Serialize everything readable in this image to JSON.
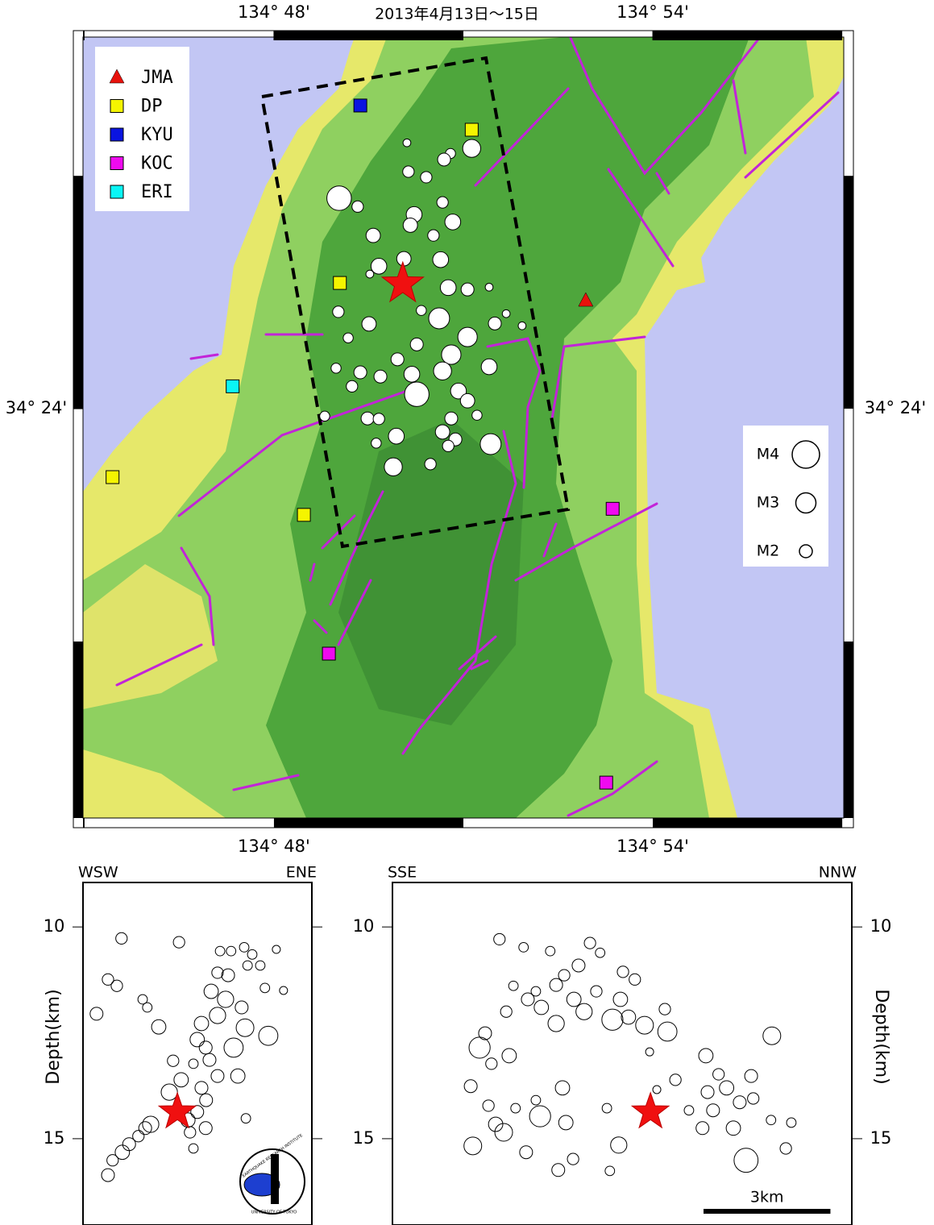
{
  "title": "2013年4月13日～15日",
  "map": {
    "xlim": [
      134.7496,
      134.9504
    ],
    "ylim": [
      34.3121,
      34.4798
    ],
    "xticks": [
      {
        "value": 134.8,
        "label": "134° 48'"
      },
      {
        "value": 134.9,
        "label": "134° 54'"
      }
    ],
    "yticks": [
      {
        "value": 34.4,
        "label": "34° 24'"
      }
    ],
    "networks": [
      {
        "name": "JMA",
        "color": "#e8120c",
        "shape": "triangle"
      },
      {
        "name": "DP",
        "color": "#f5f500",
        "shape": "square"
      },
      {
        "name": "KYU",
        "color": "#0a14e0",
        "shape": "square"
      },
      {
        "name": "KOC",
        "color": "#ef0aef",
        "shape": "square"
      },
      {
        "name": "ERI",
        "color": "#0af5f5",
        "shape": "square"
      }
    ],
    "stations": [
      {
        "network": "JMA",
        "lon": 134.8823,
        "lat": 34.4232
      },
      {
        "network": "DP",
        "lon": 134.8522,
        "lat": 34.4599
      },
      {
        "network": "DP",
        "lon": 134.8174,
        "lat": 34.427
      },
      {
        "network": "DP",
        "lon": 134.7574,
        "lat": 34.3853
      },
      {
        "network": "DP",
        "lon": 134.8079,
        "lat": 34.3772
      },
      {
        "network": "KYU",
        "lon": 134.8228,
        "lat": 34.4651
      },
      {
        "network": "KOC",
        "lon": 134.8894,
        "lat": 34.3785
      },
      {
        "network": "KOC",
        "lon": 134.8145,
        "lat": 34.3474
      },
      {
        "network": "KOC",
        "lon": 134.8877,
        "lat": 34.3197
      },
      {
        "network": "ERI",
        "lon": 134.7891,
        "lat": 34.4048
      }
    ],
    "mainshock": {
      "lon": 134.834,
      "lat": 34.4268
    },
    "epicenters": [
      [
        134.8522,
        34.4559,
        2.7
      ],
      [
        134.8466,
        34.4548,
        1.6
      ],
      [
        134.8351,
        34.4571,
        1.3
      ],
      [
        134.8449,
        34.4535,
        2.0
      ],
      [
        134.8355,
        34.4509,
        1.8
      ],
      [
        134.8402,
        34.4497,
        1.8
      ],
      [
        134.8172,
        34.4452,
        3.6
      ],
      [
        134.8221,
        34.4434,
        1.8
      ],
      [
        134.837,
        34.4417,
        2.4
      ],
      [
        134.8445,
        34.4443,
        1.8
      ],
      [
        134.8472,
        34.4401,
        2.4
      ],
      [
        134.836,
        34.4394,
        2.2
      ],
      [
        134.8421,
        34.4372,
        1.8
      ],
      [
        134.8262,
        34.4372,
        2.2
      ],
      [
        134.8343,
        34.4322,
        2.2
      ],
      [
        134.844,
        34.432,
        2.4
      ],
      [
        134.8277,
        34.4306,
        2.4
      ],
      [
        134.846,
        34.426,
        2.4
      ],
      [
        134.8511,
        34.4256,
        2.0
      ],
      [
        134.8436,
        34.4194,
        3.1
      ],
      [
        134.8568,
        34.4261,
        1.3
      ],
      [
        134.8253,
        34.4289,
        1.3
      ],
      [
        134.817,
        34.4208,
        1.8
      ],
      [
        134.8251,
        34.4182,
        2.2
      ],
      [
        134.8389,
        34.4211,
        1.6
      ],
      [
        134.8583,
        34.4183,
        2.0
      ],
      [
        134.8613,
        34.4204,
        1.3
      ],
      [
        134.8655,
        34.4178,
        1.3
      ],
      [
        134.8196,
        34.4152,
        1.6
      ],
      [
        134.8377,
        34.4138,
        2.0
      ],
      [
        134.8511,
        34.4154,
        2.9
      ],
      [
        134.8468,
        34.4116,
        2.9
      ],
      [
        134.8568,
        34.409,
        2.4
      ],
      [
        134.8445,
        34.4081,
        2.7
      ],
      [
        134.8326,
        34.4106,
        2.0
      ],
      [
        134.8164,
        34.4087,
        1.6
      ],
      [
        134.8228,
        34.4078,
        2.0
      ],
      [
        134.8281,
        34.4069,
        2.0
      ],
      [
        134.8364,
        34.4074,
        2.4
      ],
      [
        134.8206,
        34.4048,
        1.8
      ],
      [
        134.8377,
        34.4031,
        3.6
      ],
      [
        134.8487,
        34.4038,
        2.4
      ],
      [
        134.8511,
        34.4017,
        2.2
      ],
      [
        134.8134,
        34.3984,
        1.6
      ],
      [
        134.8247,
        34.3979,
        2.0
      ],
      [
        134.8277,
        34.3978,
        1.8
      ],
      [
        134.8468,
        34.3979,
        2.0
      ],
      [
        134.8536,
        34.3986,
        1.6
      ],
      [
        134.8323,
        34.3941,
        2.4
      ],
      [
        134.827,
        34.3926,
        1.6
      ],
      [
        134.8445,
        34.395,
        2.2
      ],
      [
        134.8479,
        34.3934,
        2.0
      ],
      [
        134.8572,
        34.3924,
        3.1
      ],
      [
        134.8413,
        34.3881,
        1.8
      ],
      [
        134.8315,
        34.3875,
        2.7
      ],
      [
        134.846,
        34.392,
        1.8
      ]
    ],
    "magnitude_scale": [
      {
        "label": "M4",
        "value": 4
      },
      {
        "label": "M3",
        "value": 3
      },
      {
        "label": "M2",
        "value": 2
      }
    ]
  },
  "sections": [
    {
      "left_label": "WSW",
      "right_label": "ENE",
      "axis_label": "Depth(km)",
      "xlim": [
        0,
        5.41
      ],
      "ylim": [
        8.95,
        17.0
      ],
      "yticks": [
        10,
        15
      ],
      "mainshock": [
        2.23,
        14.37
      ],
      "events": [
        [
          0.91,
          10.27,
          2.0
        ],
        [
          0.32,
          12.05,
          2.3
        ],
        [
          0.59,
          11.24,
          2.0
        ],
        [
          0.8,
          11.39,
          2.0
        ],
        [
          1.41,
          11.71,
          1.6
        ],
        [
          1.52,
          11.9,
          1.6
        ],
        [
          1.79,
          12.36,
          2.6
        ],
        [
          2.27,
          10.36,
          2.0
        ],
        [
          3.24,
          10.57,
          1.6
        ],
        [
          3.5,
          10.57,
          1.6
        ],
        [
          3.81,
          10.48,
          1.6
        ],
        [
          4.0,
          10.65,
          1.6
        ],
        [
          4.19,
          10.91,
          1.6
        ],
        [
          3.89,
          10.91,
          1.6
        ],
        [
          4.57,
          10.53,
          1.3
        ],
        [
          4.74,
          11.5,
          1.3
        ],
        [
          4.3,
          11.44,
          1.6
        ],
        [
          3.43,
          11.14,
          2.3
        ],
        [
          3.18,
          11.08,
          2.0
        ],
        [
          3.03,
          11.52,
          2.6
        ],
        [
          3.37,
          11.71,
          3.0
        ],
        [
          3.18,
          12.09,
          3.0
        ],
        [
          2.8,
          12.28,
          2.6
        ],
        [
          3.75,
          11.9,
          2.3
        ],
        [
          3.83,
          12.38,
          3.3
        ],
        [
          4.38,
          12.57,
          3.6
        ],
        [
          2.7,
          12.66,
          2.6
        ],
        [
          2.9,
          12.85,
          2.3
        ],
        [
          3.56,
          12.85,
          3.6
        ],
        [
          2.99,
          13.14,
          2.3
        ],
        [
          2.61,
          13.23,
          1.6
        ],
        [
          2.13,
          13.16,
          2.0
        ],
        [
          2.32,
          13.61,
          2.6
        ],
        [
          3.18,
          13.52,
          2.3
        ],
        [
          3.66,
          13.52,
          2.6
        ],
        [
          2.8,
          13.8,
          2.3
        ],
        [
          2.04,
          13.9,
          3.0
        ],
        [
          2.91,
          14.09,
          2.3
        ],
        [
          2.7,
          14.37,
          2.3
        ],
        [
          2.48,
          14.56,
          2.6
        ],
        [
          1.6,
          14.66,
          3.0
        ],
        [
          1.31,
          14.94,
          2.0
        ],
        [
          1.47,
          14.75,
          2.3
        ],
        [
          1.09,
          15.13,
          2.3
        ],
        [
          0.93,
          15.32,
          2.6
        ],
        [
          0.7,
          15.51,
          2.0
        ],
        [
          0.59,
          15.86,
          2.3
        ],
        [
          2.61,
          15.23,
          1.6
        ],
        [
          3.85,
          14.52,
          1.6
        ],
        [
          2.9,
          14.75,
          2.3
        ],
        [
          2.53,
          14.85,
          2.0
        ]
      ],
      "logo": {
        "top": "EARTHQUAKE RESEARCH INSTITUTE",
        "bottom": "UNIVERSITY OF TOKYO"
      }
    },
    {
      "left_label": "SSE",
      "right_label": "NNW",
      "axis_label": "Depth(km)",
      "xlim": [
        0,
        10.86
      ],
      "ylim": [
        8.95,
        17.0
      ],
      "yticks": [
        10,
        15
      ],
      "mainshock": [
        6.1,
        14.37
      ],
      "scale_bar": {
        "value": 3,
        "label": "3km"
      },
      "events": [
        [
          2.53,
          10.29,
          2.0
        ],
        [
          3.1,
          10.48,
          1.6
        ],
        [
          3.73,
          10.57,
          1.6
        ],
        [
          4.67,
          10.38,
          2.0
        ],
        [
          4.91,
          10.61,
          1.6
        ],
        [
          4.4,
          10.91,
          2.3
        ],
        [
          4.06,
          11.14,
          2.0
        ],
        [
          3.87,
          11.37,
          2.3
        ],
        [
          3.39,
          11.52,
          1.6
        ],
        [
          2.86,
          11.39,
          1.6
        ],
        [
          3.2,
          11.71,
          2.3
        ],
        [
          3.52,
          11.9,
          2.6
        ],
        [
          3.87,
          12.28,
          3.0
        ],
        [
          4.29,
          11.71,
          2.6
        ],
        [
          4.53,
          12.0,
          3.0
        ],
        [
          4.82,
          11.52,
          2.0
        ],
        [
          5.45,
          11.06,
          2.0
        ],
        [
          5.73,
          11.24,
          2.0
        ],
        [
          5.39,
          11.71,
          2.6
        ],
        [
          5.2,
          12.19,
          4.0
        ],
        [
          5.58,
          12.13,
          2.6
        ],
        [
          5.96,
          12.32,
          3.3
        ],
        [
          6.5,
          12.47,
          3.6
        ],
        [
          6.44,
          11.94,
          2.0
        ],
        [
          6.08,
          12.95,
          1.3
        ],
        [
          6.25,
          13.84,
          1.3
        ],
        [
          6.69,
          13.61,
          2.0
        ],
        [
          2.06,
          12.85,
          4.0
        ],
        [
          2.19,
          12.51,
          2.3
        ],
        [
          2.34,
          13.23,
          2.0
        ],
        [
          2.76,
          13.04,
          2.6
        ],
        [
          2.69,
          12.0,
          2.0
        ],
        [
          1.85,
          13.76,
          2.3
        ],
        [
          2.27,
          14.22,
          2.0
        ],
        [
          2.44,
          14.66,
          2.6
        ],
        [
          2.63,
          14.85,
          3.3
        ],
        [
          2.91,
          14.28,
          1.6
        ],
        [
          3.39,
          14.09,
          1.6
        ],
        [
          3.49,
          14.47,
          4.0
        ],
        [
          4.02,
          13.8,
          2.6
        ],
        [
          4.1,
          14.62,
          2.6
        ],
        [
          1.9,
          15.17,
          3.3
        ],
        [
          3.16,
          15.32,
          2.3
        ],
        [
          3.92,
          15.74,
          2.3
        ],
        [
          4.27,
          15.48,
          2.0
        ],
        [
          5.14,
          15.76,
          1.6
        ],
        [
          5.35,
          15.15,
          3.0
        ],
        [
          7.41,
          13.04,
          2.6
        ],
        [
          7.71,
          13.48,
          2.0
        ],
        [
          7.45,
          13.9,
          2.3
        ],
        [
          7.9,
          13.8,
          2.6
        ],
        [
          7.58,
          14.33,
          2.3
        ],
        [
          7.33,
          14.75,
          2.3
        ],
        [
          8.06,
          14.75,
          2.6
        ],
        [
          8.48,
          13.52,
          2.3
        ],
        [
          8.53,
          14.05,
          2.0
        ],
        [
          8.21,
          14.14,
          2.3
        ],
        [
          8.97,
          12.57,
          3.3
        ],
        [
          8.95,
          14.56,
          1.6
        ],
        [
          9.43,
          14.62,
          1.6
        ],
        [
          9.3,
          15.23,
          2.0
        ],
        [
          8.36,
          15.51,
          4.6
        ],
        [
          7.01,
          14.33,
          1.6
        ],
        [
          5.07,
          14.28,
          1.6
        ]
      ]
    }
  ]
}
